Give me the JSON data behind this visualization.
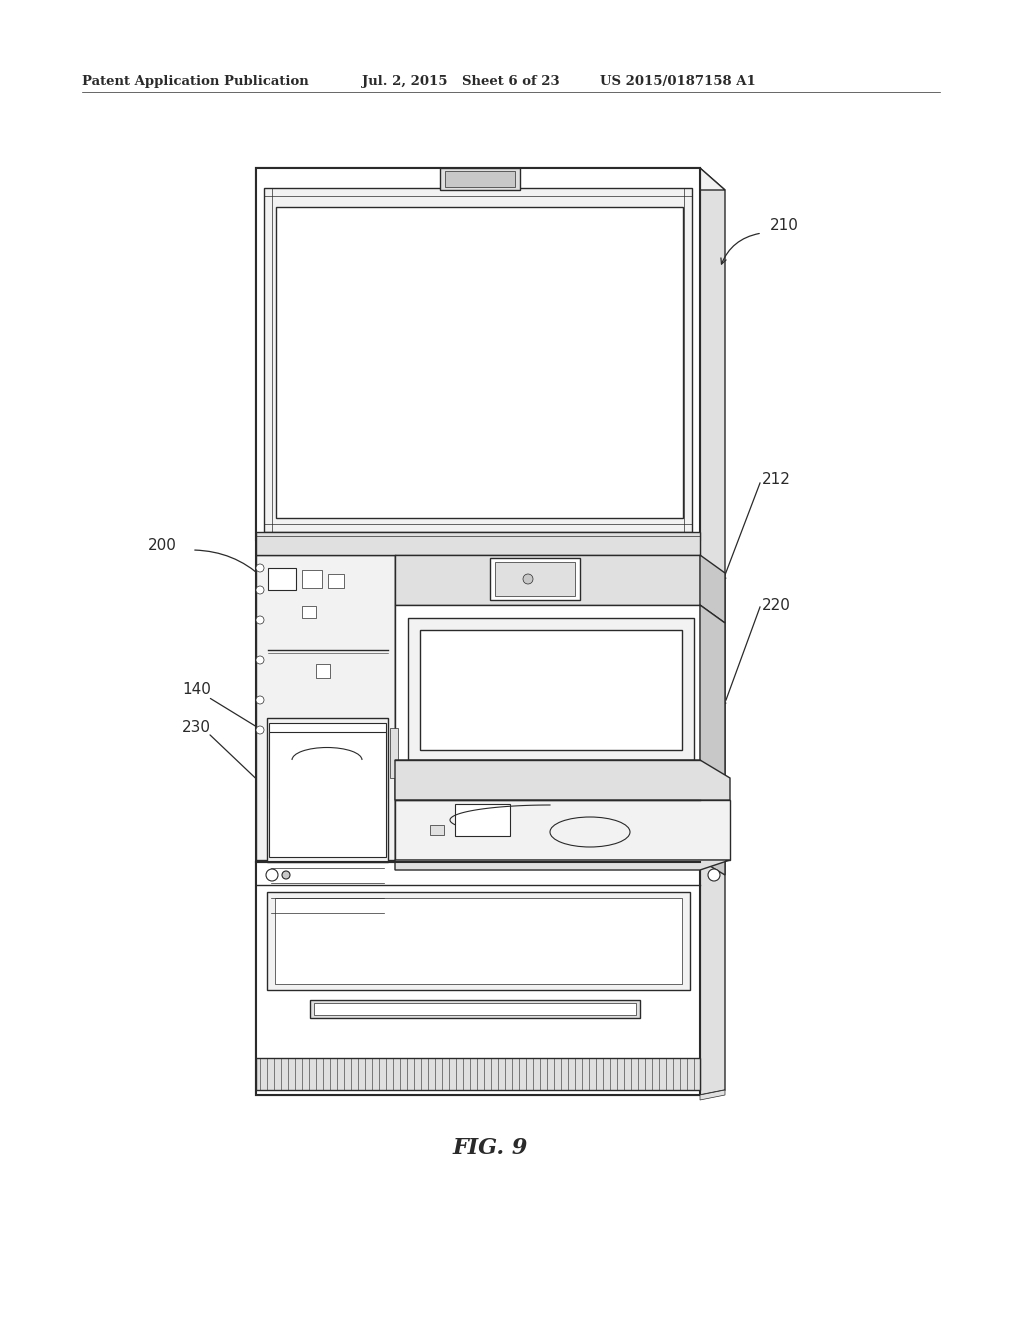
{
  "bg_color": "#ffffff",
  "line_color": "#2a2a2a",
  "header_text": "Patent Application Publication",
  "header_date": "Jul. 2, 2015",
  "header_sheet": "Sheet 6 of 23",
  "header_patent": "US 2015/0187158 A1",
  "fig_label": "FIG. 9",
  "fill_light": "#f2f2f2",
  "fill_mid": "#e0e0e0",
  "fill_dark": "#c8c8c8",
  "fill_white": "#ffffff"
}
